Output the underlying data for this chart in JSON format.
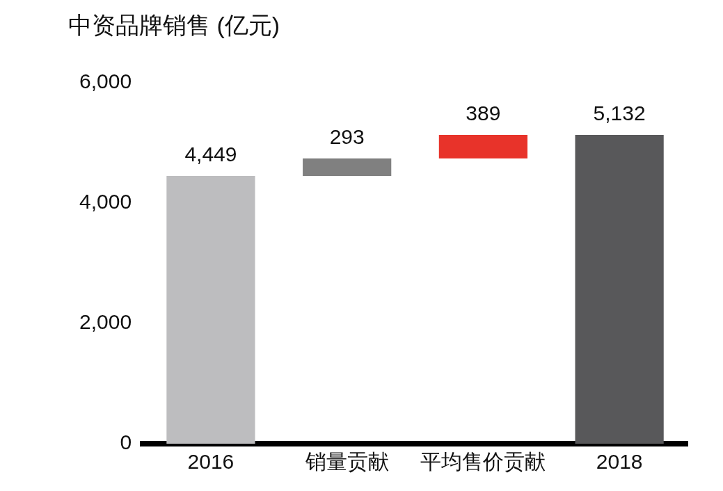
{
  "chart_data": {
    "type": "bar",
    "title": "中资品牌销售 (亿元)",
    "categories": [
      "2016",
      "销量贡献",
      "平均售价贡献",
      "2018"
    ],
    "values": [
      4449,
      293,
      389,
      5132
    ],
    "base": [
      0,
      4449,
      4742,
      0
    ],
    "colors": [
      "#bdbdbf",
      "#808080",
      "#e8332a",
      "#58585a"
    ],
    "ylim": [
      0,
      6000
    ],
    "yticks": [
      0,
      {
        "value": 2000,
        "label": "2,000"
      },
      {
        "value": 4000,
        "label": "4,000"
      },
      {
        "value": 6000,
        "label": "6,000"
      }
    ],
    "value_labels": [
      "4,449",
      "293",
      "389",
      "5,132"
    ],
    "grid": false,
    "legend": false
  }
}
